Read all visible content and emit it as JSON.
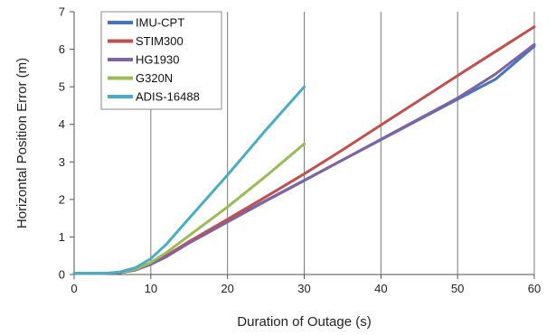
{
  "chart_data": {
    "type": "line",
    "title": "",
    "xlabel": "Duration of Outage (s)",
    "ylabel": "Horizontal Position Error (m)",
    "xlim": [
      0,
      60
    ],
    "ylim": [
      0,
      7
    ],
    "xticks": [
      0,
      10,
      20,
      30,
      40,
      50,
      60
    ],
    "yticks": [
      0,
      1,
      2,
      3,
      4,
      5,
      6,
      7
    ],
    "grid": "vertical",
    "legend_position": "top-left",
    "series": [
      {
        "name": "IMU-CPT",
        "color": "#4472c4",
        "x": [
          0,
          4,
          6,
          8,
          10,
          12,
          15,
          20,
          25,
          30,
          35,
          40,
          45,
          50,
          55,
          60
        ],
        "y": [
          0.03,
          0.03,
          0.05,
          0.12,
          0.28,
          0.48,
          0.85,
          1.42,
          1.97,
          2.51,
          3.05,
          3.59,
          4.13,
          4.67,
          5.21,
          6.08
        ]
      },
      {
        "name": "STIM300",
        "color": "#c0504d",
        "x": [
          0,
          4,
          6,
          8,
          10,
          12,
          15,
          20,
          25,
          30,
          35,
          40,
          45,
          50,
          55,
          60
        ],
        "y": [
          0.03,
          0.03,
          0.05,
          0.12,
          0.28,
          0.5,
          0.88,
          1.47,
          2.07,
          2.68,
          3.32,
          3.98,
          4.64,
          5.3,
          5.95,
          6.6
        ]
      },
      {
        "name": "HG1930",
        "color": "#8064a2",
        "x": [
          0,
          4,
          6,
          8,
          10,
          12,
          15,
          20,
          25,
          30,
          35,
          40,
          45,
          50,
          55,
          60
        ],
        "y": [
          0.03,
          0.03,
          0.05,
          0.12,
          0.27,
          0.47,
          0.84,
          1.4,
          1.96,
          2.5,
          3.05,
          3.6,
          4.15,
          4.7,
          5.35,
          6.13
        ]
      },
      {
        "name": "G320N",
        "color": "#9bbb59",
        "x": [
          0,
          4,
          6,
          8,
          10,
          12,
          15,
          20,
          25,
          30
        ],
        "y": [
          0.03,
          0.03,
          0.06,
          0.14,
          0.32,
          0.58,
          1.04,
          1.8,
          2.62,
          3.48
        ]
      },
      {
        "name": "ADIS-16488",
        "color": "#4bacc6",
        "x": [
          0,
          4,
          6,
          8,
          10,
          12,
          15,
          20,
          25,
          30
        ],
        "y": [
          0.03,
          0.03,
          0.07,
          0.18,
          0.42,
          0.8,
          1.5,
          2.65,
          3.85,
          5.0
        ]
      }
    ]
  }
}
